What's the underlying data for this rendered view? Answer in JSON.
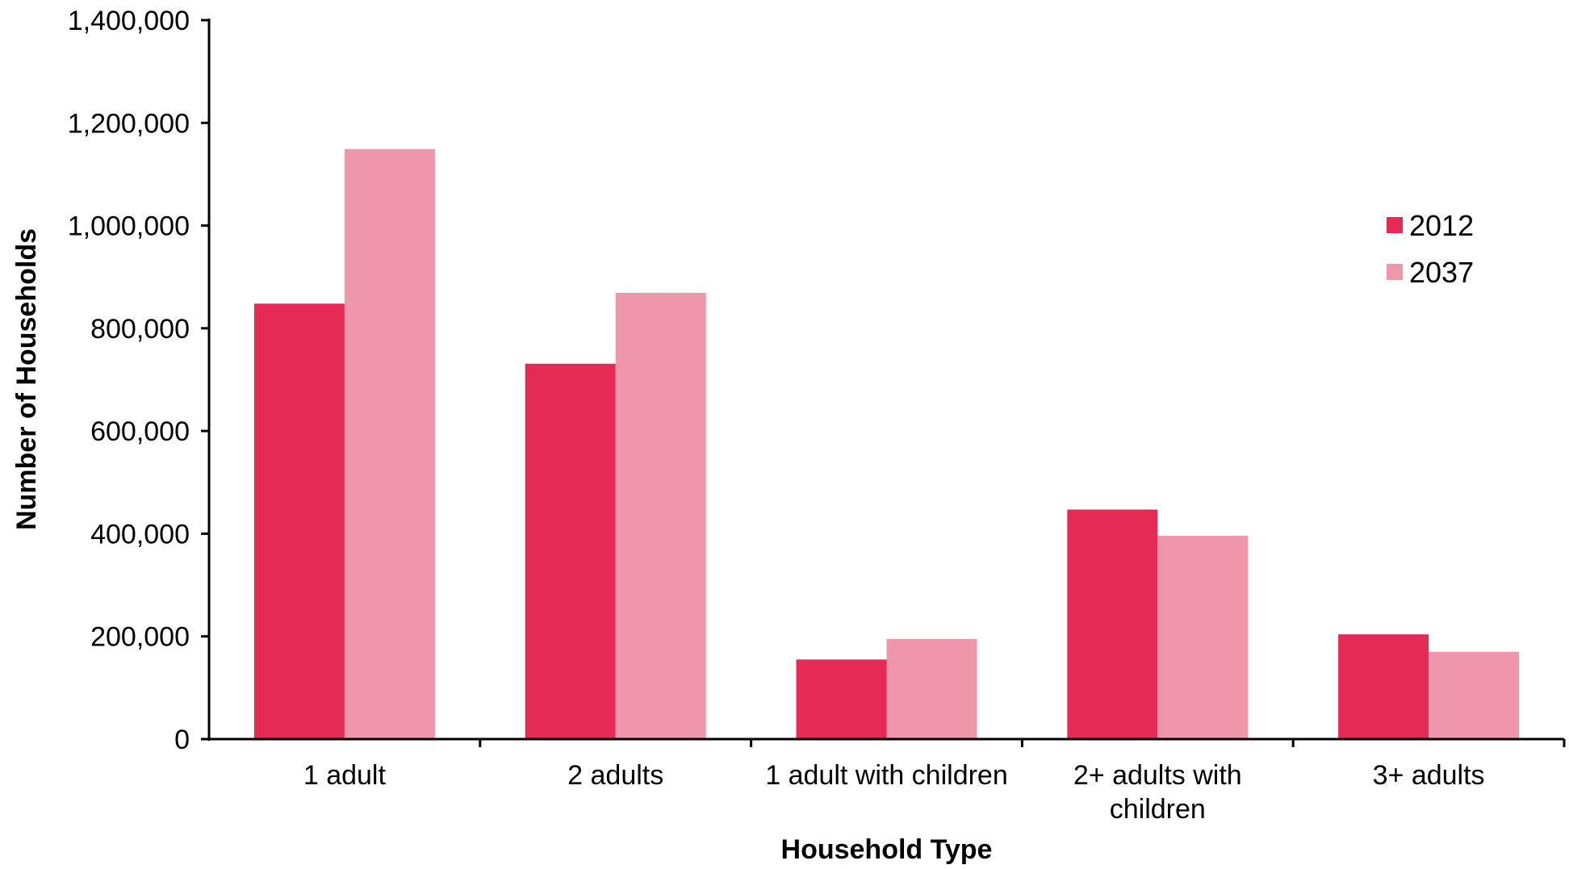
{
  "chart_data": {
    "type": "bar",
    "title": "",
    "xlabel": "Household Type",
    "ylabel": "Number of Households",
    "ylim": [
      0,
      1400000
    ],
    "yticks": [
      0,
      200000,
      400000,
      600000,
      800000,
      1000000,
      1200000,
      1400000
    ],
    "ytick_labels": [
      "0",
      "200,000",
      "400,000",
      "600,000",
      "800,000",
      "1,000,000",
      "1,200,000",
      "1,400,000"
    ],
    "categories": [
      [
        "1 adult"
      ],
      [
        "2 adults"
      ],
      [
        "1 adult with children"
      ],
      [
        "2+ adults with",
        "children"
      ],
      [
        "3+ adults"
      ]
    ],
    "series": [
      {
        "name": "2012",
        "color": "#e52a56",
        "values": [
          848000,
          731000,
          155000,
          447000,
          204000
        ]
      },
      {
        "name": "2037",
        "color": "#ef97aa",
        "values": [
          1149000,
          869000,
          195000,
          396000,
          170000
        ]
      }
    ],
    "legend_position": "right",
    "grid": false
  }
}
